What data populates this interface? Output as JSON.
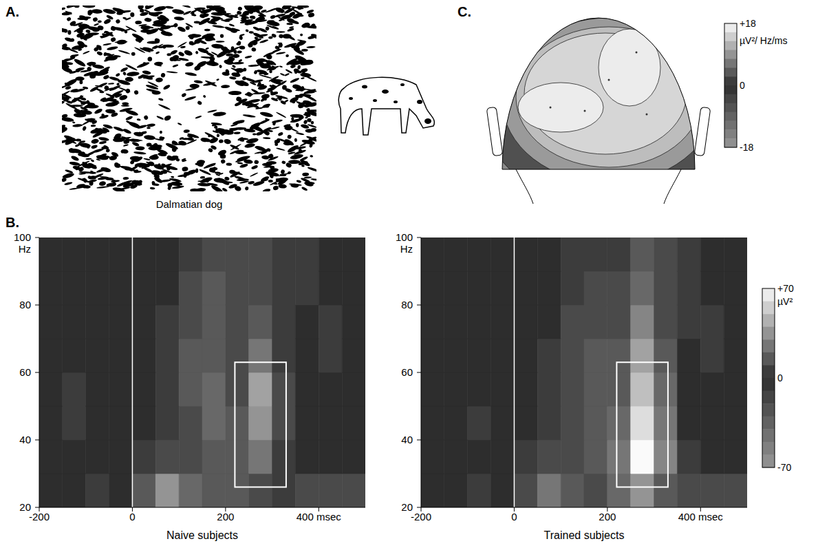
{
  "panel_a": {
    "letter": "A.",
    "caption": "Dalmatian dog"
  },
  "panel_b": {
    "letter": "B.",
    "colorbar": {
      "range": [
        -70,
        70
      ],
      "ticks": [
        {
          "value": 70,
          "label": "+70"
        },
        0,
        -70
      ],
      "label": "µV²"
    }
  },
  "panel_c": {
    "letter": "C.",
    "colorbar": {
      "range": [
        -18,
        18
      ],
      "ticks": [
        {
          "value": 18,
          "label": "+18"
        },
        0,
        -18
      ],
      "label": "µV²/ Hz/ms"
    }
  },
  "chart_data": [
    {
      "type": "heatmap",
      "title": "Naive subjects",
      "ylabel": "Hz",
      "xlim": [
        -200,
        500
      ],
      "xticks": [
        -200,
        0,
        200,
        {
          "value": 400,
          "label": "400 msec"
        }
      ],
      "ylim": [
        20,
        100
      ],
      "yticks": [
        20,
        40,
        60,
        80,
        100
      ],
      "x_bins": [
        -200,
        -150,
        -100,
        -50,
        0,
        50,
        100,
        150,
        200,
        250,
        300,
        350,
        400,
        450,
        500
      ],
      "y_bins": [
        20,
        30,
        40,
        50,
        60,
        70,
        80,
        90,
        100
      ],
      "cells": [
        [
          0,
          0,
          5,
          0,
          15,
          35,
          20,
          15,
          15,
          10,
          5,
          10,
          10,
          10
        ],
        [
          0,
          0,
          0,
          0,
          5,
          10,
          10,
          15,
          15,
          25,
          5,
          0,
          0,
          0
        ],
        [
          0,
          5,
          0,
          0,
          0,
          5,
          10,
          20,
          15,
          35,
          10,
          0,
          0,
          0
        ],
        [
          0,
          5,
          0,
          0,
          0,
          5,
          15,
          20,
          10,
          40,
          10,
          0,
          0,
          0
        ],
        [
          0,
          0,
          0,
          0,
          0,
          5,
          15,
          15,
          10,
          25,
          5,
          0,
          5,
          0
        ],
        [
          0,
          0,
          0,
          0,
          0,
          5,
          10,
          15,
          10,
          15,
          5,
          0,
          5,
          0
        ],
        [
          0,
          0,
          0,
          0,
          0,
          0,
          10,
          15,
          10,
          10,
          5,
          5,
          0,
          0
        ],
        [
          0,
          0,
          0,
          0,
          0,
          0,
          5,
          10,
          10,
          10,
          5,
          5,
          0,
          0
        ]
      ],
      "box": {
        "x": [
          220,
          330
        ],
        "y": [
          26,
          63
        ]
      },
      "vline": 0
    },
    {
      "type": "heatmap",
      "title": "Trained subjects",
      "ylabel": "Hz",
      "xlim": [
        -200,
        500
      ],
      "xticks": [
        -200,
        0,
        200,
        {
          "value": 400,
          "label": "400 msec"
        }
      ],
      "ylim": [
        20,
        100
      ],
      "yticks": [
        20,
        40,
        60,
        80,
        100
      ],
      "x_bins": [
        -200,
        -150,
        -100,
        -50,
        0,
        50,
        100,
        150,
        200,
        250,
        300,
        350,
        400,
        450,
        500
      ],
      "y_bins": [
        20,
        30,
        40,
        50,
        60,
        70,
        80,
        90,
        100
      ],
      "cells": [
        [
          0,
          0,
          5,
          0,
          10,
          25,
          15,
          10,
          20,
          35,
          15,
          10,
          10,
          10
        ],
        [
          0,
          0,
          0,
          0,
          5,
          10,
          10,
          15,
          25,
          70,
          30,
          5,
          0,
          0
        ],
        [
          0,
          0,
          5,
          0,
          0,
          5,
          10,
          15,
          20,
          60,
          25,
          0,
          0,
          0
        ],
        [
          0,
          0,
          0,
          0,
          0,
          5,
          10,
          15,
          15,
          50,
          20,
          0,
          0,
          0
        ],
        [
          0,
          0,
          0,
          0,
          0,
          5,
          10,
          15,
          15,
          40,
          15,
          0,
          5,
          0
        ],
        [
          0,
          0,
          0,
          0,
          0,
          0,
          10,
          10,
          10,
          30,
          10,
          5,
          5,
          0
        ],
        [
          0,
          0,
          0,
          0,
          0,
          0,
          5,
          10,
          10,
          20,
          10,
          5,
          0,
          0
        ],
        [
          0,
          0,
          0,
          0,
          0,
          0,
          5,
          5,
          5,
          15,
          10,
          5,
          0,
          0
        ]
      ],
      "box": {
        "x": [
          220,
          330
        ],
        "y": [
          26,
          63
        ]
      },
      "vline": 0
    }
  ]
}
